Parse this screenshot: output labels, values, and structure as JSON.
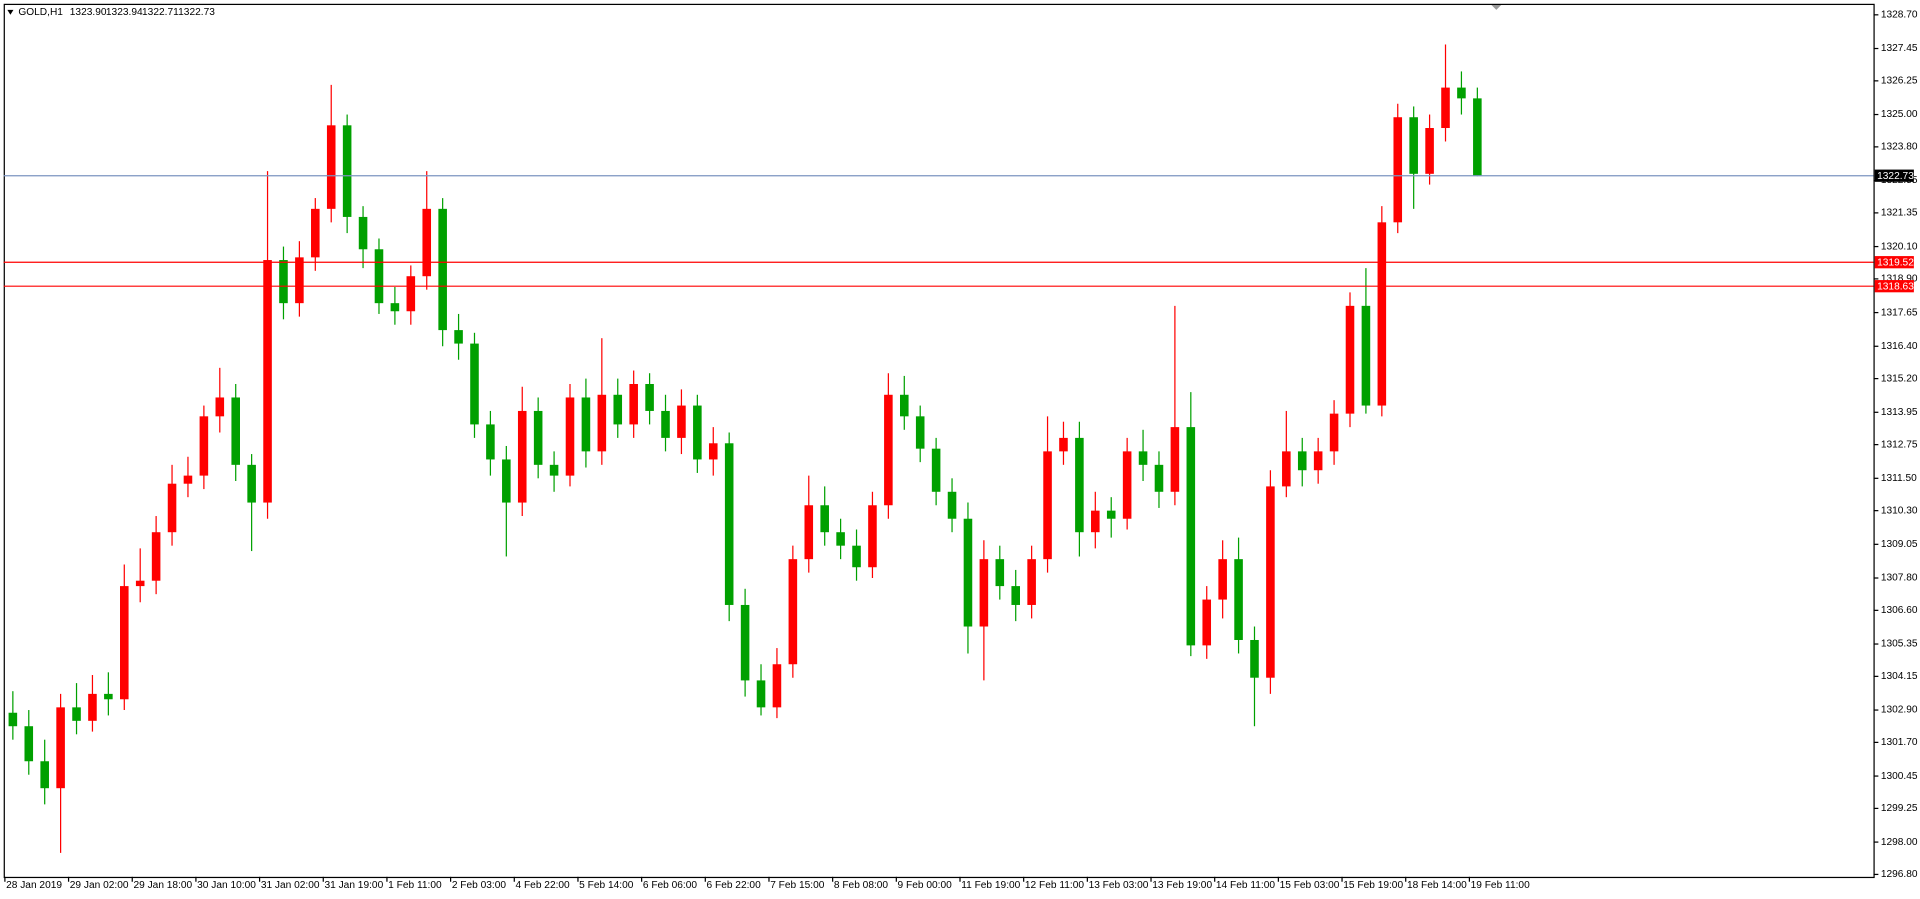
{
  "chart_data": {
    "type": "candlestick",
    "title": "GOLD,H1",
    "header_values": [
      "1323.90",
      "1323.94",
      "1322.71",
      "1322.73"
    ],
    "up_color": "#ff0000",
    "down_color": "#00a000",
    "ylim": [
      1296.71,
      1329.11
    ],
    "yticks": [
      {
        "value": 1328.7,
        "label": "1328.70"
      },
      1327.45,
      1326.25,
      {
        "value": 1325,
        "label": "1325.00"
      },
      {
        "value": 1323.8,
        "label": "1323.80"
      },
      1322.55,
      1321.35,
      {
        "value": 1320.1,
        "label": "1320.10"
      },
      {
        "value": 1318.9,
        "label": "1318.90"
      },
      1317.65,
      {
        "value": 1316.4,
        "label": "1316.40"
      },
      {
        "value": 1315.2,
        "label": "1315.20"
      },
      1313.95,
      1312.75,
      {
        "value": 1311.5,
        "label": "1311.50"
      },
      {
        "value": 1310.3,
        "label": "1310.30"
      },
      1309.05,
      {
        "value": 1307.8,
        "label": "1307.80"
      },
      {
        "value": 1306.6,
        "label": "1306.60"
      },
      1305.35,
      1304.15,
      {
        "value": 1302.9,
        "label": "1302.90"
      },
      {
        "value": 1301.7,
        "label": "1301.70"
      },
      1300.45,
      1299.25,
      {
        "value": 1298,
        "label": "1298.00"
      },
      {
        "value": 1296.8,
        "label": "1296.80"
      }
    ],
    "hlines": [
      {
        "value": 1322.73,
        "color": "#7b94c0",
        "label_color": "#000000"
      },
      {
        "value": 1319.52,
        "color": "#ff0000",
        "label_color": "#ff0000"
      },
      {
        "value": 1318.63,
        "color": "#ff0000",
        "label_color": "#ff0000"
      }
    ],
    "categories": [
      "28 Jan 2019",
      null,
      null,
      null,
      "29 Jan 02:00",
      null,
      null,
      null,
      "29 Jan 18:00",
      null,
      null,
      null,
      "30 Jan 10:00",
      null,
      null,
      null,
      "31 Jan 02:00",
      null,
      null,
      null,
      "31 Jan 19:00",
      null,
      null,
      null,
      "1 Feb 11:00",
      null,
      null,
      null,
      "2 Feb 03:00",
      null,
      null,
      null,
      "4 Feb 22:00",
      null,
      null,
      null,
      "5 Feb 14:00",
      null,
      null,
      null,
      "6 Feb 06:00",
      null,
      null,
      null,
      "6 Feb 22:00",
      null,
      null,
      null,
      "7 Feb 15:00",
      null,
      null,
      null,
      "8 Feb 08:00",
      null,
      null,
      null,
      "9 Feb 00:00",
      null,
      null,
      null,
      "11 Feb 19:00",
      null,
      null,
      null,
      "12 Feb 11:00",
      null,
      null,
      null,
      "13 Feb 03:00",
      null,
      null,
      null,
      "13 Feb 19:00",
      null,
      null,
      null,
      "14 Feb 11:00",
      null,
      null,
      null,
      "15 Feb 03:00",
      null,
      null,
      null,
      "15 Feb 19:00",
      null,
      null,
      null,
      "18 Feb 14:00",
      null,
      null,
      null,
      "19 Feb 11:00"
    ],
    "open": [
      1302.8,
      1302.3,
      1301.0,
      1300.0,
      1303.0,
      1302.5,
      1303.5,
      1303.3,
      1307.5,
      1307.7,
      1309.5,
      1311.3,
      1311.6,
      1313.8,
      1314.5,
      1312.0,
      1310.6,
      1319.6,
      1318.0,
      1319.7,
      1321.5,
      1324.6,
      1321.2,
      1320.0,
      1318.0,
      1317.7,
      1319.0,
      1321.5,
      1317.0,
      1316.5,
      1313.5,
      1312.2,
      1310.6,
      1314.0,
      1312.0,
      1311.6,
      1314.5,
      1312.5,
      1314.6,
      1313.5,
      1315.0,
      1314.0,
      1313.0,
      1314.2,
      1312.2,
      1312.8,
      1306.8,
      1304.0,
      1303.0,
      1304.6,
      1308.5,
      1310.5,
      1309.5,
      1309.0,
      1308.2,
      1310.5,
      1314.6,
      1313.8,
      1312.6,
      1311.0,
      1310.0,
      1306.0,
      1308.5,
      1307.5,
      1306.8,
      1308.5,
      1312.5,
      1313.0,
      1309.5,
      1310.3,
      1310.0,
      1312.5,
      1312.0,
      1311.0,
      1313.4,
      1305.3,
      1307.0,
      1308.5,
      1305.5,
      1304.1,
      1311.2,
      1312.5,
      1311.8,
      1312.5,
      1313.9,
      1317.9,
      1314.2,
      1321.0,
      1324.9,
      1322.8,
      1324.5,
      1326.0,
      1325.6
    ],
    "high": [
      1303.6,
      1302.9,
      1301.8,
      1303.5,
      1303.9,
      1304.2,
      1304.3,
      1308.3,
      1308.9,
      1310.1,
      1312.0,
      1312.3,
      1314.2,
      1315.6,
      1315.0,
      1312.4,
      1322.9,
      1320.1,
      1320.3,
      1321.9,
      1326.1,
      1325.0,
      1321.6,
      1320.4,
      1318.6,
      1319.4,
      1322.9,
      1321.9,
      1317.6,
      1316.9,
      1314.0,
      1312.7,
      1314.9,
      1314.5,
      1312.5,
      1315.0,
      1315.2,
      1316.7,
      1315.2,
      1315.5,
      1315.4,
      1314.6,
      1314.8,
      1314.6,
      1313.4,
      1313.2,
      1307.4,
      1304.6,
      1305.2,
      1309.0,
      1311.6,
      1311.2,
      1310.0,
      1309.6,
      1311.0,
      1315.4,
      1315.3,
      1314.2,
      1313.0,
      1311.5,
      1310.6,
      1309.2,
      1309.0,
      1308.1,
      1309.0,
      1313.8,
      1313.6,
      1313.6,
      1311.0,
      1310.8,
      1313.0,
      1313.3,
      1312.5,
      1317.9,
      1314.7,
      1307.5,
      1309.2,
      1309.3,
      1306.0,
      1311.8,
      1314.0,
      1313.0,
      1313.0,
      1314.4,
      1318.4,
      1319.3,
      1321.6,
      1325.4,
      1325.3,
      1325.0,
      1327.6,
      1326.6,
      1326.0
    ],
    "low": [
      1301.8,
      1300.5,
      1299.4,
      1297.6,
      1302.0,
      1302.1,
      1302.7,
      1302.9,
      1306.9,
      1307.2,
      1309.0,
      1310.8,
      1311.1,
      1313.2,
      1311.4,
      1308.8,
      1310.0,
      1317.4,
      1317.5,
      1319.2,
      1321.0,
      1320.6,
      1319.3,
      1317.6,
      1317.2,
      1317.2,
      1318.5,
      1316.4,
      1315.9,
      1313.0,
      1311.6,
      1308.6,
      1310.1,
      1311.5,
      1311.0,
      1311.2,
      1311.9,
      1312.0,
      1313.0,
      1313.0,
      1313.5,
      1312.5,
      1312.4,
      1311.7,
      1311.6,
      1306.2,
      1303.4,
      1302.7,
      1302.6,
      1304.1,
      1308.0,
      1309.0,
      1308.5,
      1307.7,
      1307.8,
      1310.0,
      1313.3,
      1312.1,
      1310.5,
      1309.5,
      1305.0,
      1304.0,
      1307.0,
      1306.2,
      1306.3,
      1308.0,
      1312.0,
      1308.6,
      1308.9,
      1309.3,
      1309.6,
      1311.4,
      1310.4,
      1310.5,
      1304.9,
      1304.8,
      1306.3,
      1305.0,
      1302.3,
      1303.5,
      1310.8,
      1311.2,
      1311.3,
      1312.0,
      1313.4,
      1313.9,
      1313.8,
      1320.6,
      1321.5,
      1322.4,
      1324.0,
      1325.0,
      1322.71
    ],
    "close": [
      1302.3,
      1301.0,
      1300.0,
      1303.0,
      1302.5,
      1303.5,
      1303.3,
      1307.5,
      1307.7,
      1309.5,
      1311.3,
      1311.6,
      1313.8,
      1314.5,
      1312.0,
      1310.6,
      1319.6,
      1318.0,
      1319.7,
      1321.5,
      1324.6,
      1321.2,
      1320.0,
      1318.0,
      1317.7,
      1319.0,
      1321.5,
      1317.0,
      1316.5,
      1313.5,
      1312.2,
      1310.6,
      1314.0,
      1312.0,
      1311.6,
      1314.5,
      1312.5,
      1314.6,
      1313.5,
      1315.0,
      1314.0,
      1313.0,
      1314.2,
      1312.2,
      1312.8,
      1306.8,
      1304.0,
      1303.0,
      1304.6,
      1308.5,
      1310.5,
      1309.5,
      1309.0,
      1308.2,
      1310.5,
      1314.6,
      1313.8,
      1312.6,
      1311.0,
      1310.0,
      1306.0,
      1308.5,
      1307.5,
      1306.8,
      1308.5,
      1312.5,
      1313.0,
      1309.5,
      1310.3,
      1310.0,
      1312.5,
      1312.0,
      1311.0,
      1313.4,
      1305.3,
      1307.0,
      1308.5,
      1305.5,
      1304.1,
      1311.2,
      1312.5,
      1311.8,
      1312.5,
      1313.9,
      1317.9,
      1314.2,
      1321.0,
      1324.9,
      1322.8,
      1324.5,
      1326.0,
      1325.6,
      1322.73
    ]
  }
}
